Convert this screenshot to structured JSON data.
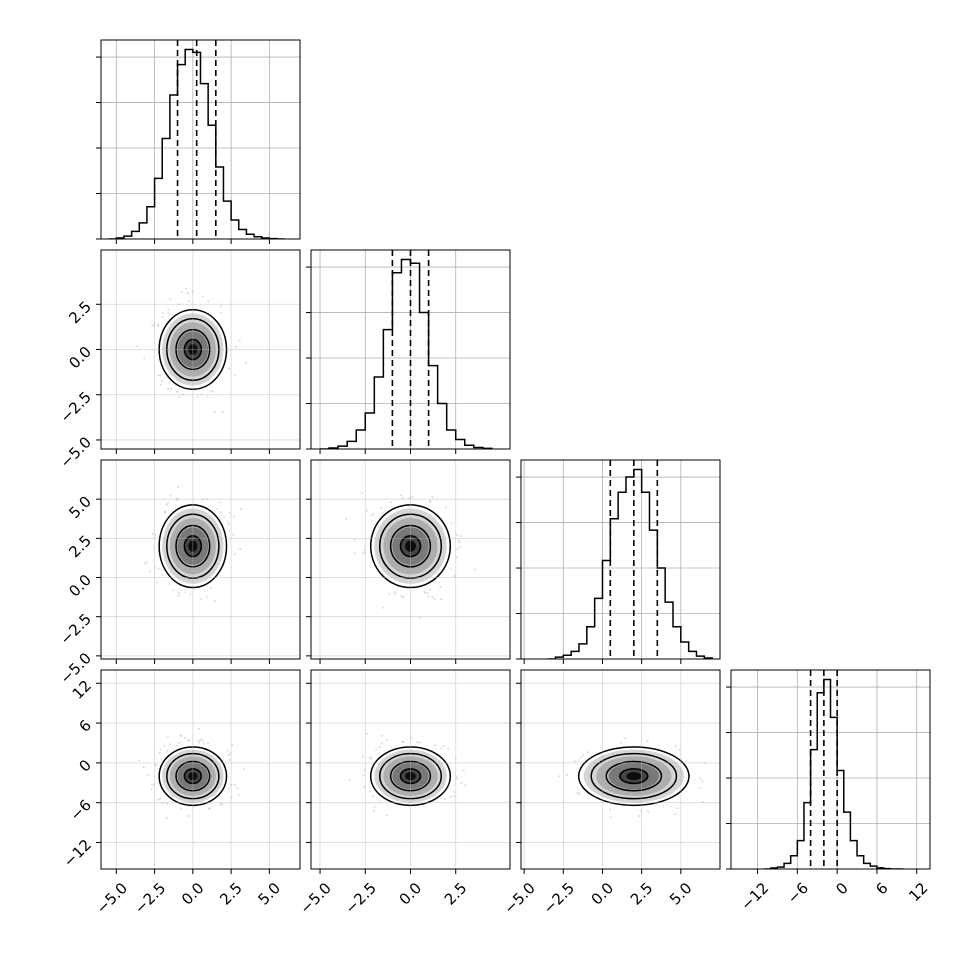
{
  "chart_data": {
    "type": "corner",
    "colors": {
      "line": "#000000",
      "grid": "#b0b0b0",
      "scatter": "#999999",
      "density_low": "#f2f2f2",
      "density_high": "#000000"
    },
    "grid": true,
    "parameters": [
      {
        "range": [
          -6,
          7
        ],
        "ticks": [
          -5,
          -2.5,
          0,
          2.5,
          5
        ],
        "tick_labels": [
          "−5.0",
          "−2.5",
          "0.0",
          "2.5",
          "5.0"
        ],
        "quantiles": [
          -1.0,
          0.25,
          1.5
        ],
        "hist": {
          "edges": [
            -5.5,
            -5.0,
            -4.5,
            -4.0,
            -3.5,
            -3.0,
            -2.5,
            -2.0,
            -1.5,
            -1.0,
            -0.5,
            0.0,
            0.5,
            1.0,
            1.5,
            2.0,
            2.5,
            3.0,
            3.5,
            4.0,
            4.5,
            5.0,
            5.5,
            6.0
          ],
          "counts": [
            0.0,
            0.005,
            0.015,
            0.04,
            0.085,
            0.17,
            0.32,
            0.53,
            0.76,
            0.92,
            1.0,
            0.985,
            0.82,
            0.6,
            0.38,
            0.2,
            0.1,
            0.05,
            0.025,
            0.012,
            0.005,
            0.002,
            0.0
          ]
        },
        "hist_ylim": [
          0,
          1.05
        ]
      },
      {
        "range": [
          -5.5,
          5.5
        ],
        "ticks": [
          -5,
          -2.5,
          0,
          2.5
        ],
        "tick_labels": [
          "−5.0",
          "−2.5",
          "0.0",
          "2.5"
        ],
        "quantiles": [
          -1.0,
          0.0,
          1.0
        ],
        "hist": {
          "edges": [
            -5.0,
            -4.5,
            -4.0,
            -3.5,
            -3.0,
            -2.5,
            -2.0,
            -1.5,
            -1.0,
            -0.5,
            0.0,
            0.5,
            1.0,
            1.5,
            2.0,
            2.5,
            3.0,
            3.5,
            4.0,
            4.5
          ],
          "counts": [
            0.0,
            0.005,
            0.015,
            0.04,
            0.1,
            0.19,
            0.38,
            0.63,
            0.93,
            1.0,
            0.98,
            0.72,
            0.44,
            0.24,
            0.1,
            0.05,
            0.02,
            0.008,
            0.003
          ]
        },
        "hist_ylim": [
          0,
          1.05
        ]
      },
      {
        "range": [
          -5.2,
          7.5
        ],
        "ticks": [
          -5,
          -2.5,
          0,
          2.5,
          5
        ],
        "tick_labels": [
          "−5.0",
          "−2.5",
          "0.0",
          "2.5",
          "5.0"
        ],
        "quantiles": [
          0.5,
          2.0,
          3.5
        ],
        "hist": {
          "edges": [
            -3.5,
            -3.0,
            -2.5,
            -2.0,
            -1.5,
            -1.0,
            -0.5,
            0.0,
            0.5,
            1.0,
            1.5,
            2.0,
            2.5,
            3.0,
            3.5,
            4.0,
            4.5,
            5.0,
            5.5,
            6.0,
            6.5,
            7.0
          ],
          "counts": [
            0.0,
            0.01,
            0.02,
            0.04,
            0.08,
            0.17,
            0.32,
            0.52,
            0.74,
            0.88,
            0.96,
            1.0,
            0.88,
            0.68,
            0.48,
            0.3,
            0.17,
            0.09,
            0.04,
            0.015,
            0.005
          ]
        },
        "hist_ylim": [
          0,
          1.05
        ]
      },
      {
        "range": [
          -16,
          14
        ],
        "ticks": [
          -12,
          -6,
          0,
          6,
          12
        ],
        "tick_labels": [
          "−12",
          "−6",
          "0",
          "6",
          "12"
        ],
        "quantiles": [
          -4.0,
          -2.0,
          0.0
        ],
        "hist": {
          "edges": [
            -11.0,
            -10.0,
            -9.0,
            -8.0,
            -7.0,
            -6.0,
            -5.0,
            -4.0,
            -3.0,
            -2.0,
            -1.0,
            0.0,
            1.0,
            2.0,
            3.0,
            4.0,
            5.0,
            6.0,
            7.0,
            8.0,
            9.0,
            10.0
          ],
          "counts": [
            0.0,
            0.005,
            0.01,
            0.03,
            0.07,
            0.15,
            0.35,
            0.63,
            0.93,
            1.0,
            0.8,
            0.52,
            0.3,
            0.15,
            0.07,
            0.03,
            0.015,
            0.006,
            0.002,
            0.0,
            0.0
          ]
        },
        "hist_ylim": [
          0,
          1.05
        ]
      }
    ],
    "joint": [
      {
        "row": 1,
        "col": 0,
        "mean": [
          0.0,
          0.0
        ],
        "sd": [
          1.0,
          1.0
        ]
      },
      {
        "row": 2,
        "col": 0,
        "mean": [
          0.0,
          2.0
        ],
        "sd": [
          1.0,
          1.2
        ]
      },
      {
        "row": 2,
        "col": 1,
        "mean": [
          0.0,
          2.0
        ],
        "sd": [
          1.0,
          1.2
        ]
      },
      {
        "row": 3,
        "col": 0,
        "mean": [
          0.0,
          -2.0
        ],
        "sd": [
          1.0,
          2.0
        ]
      },
      {
        "row": 3,
        "col": 1,
        "mean": [
          0.0,
          -2.0
        ],
        "sd": [
          1.0,
          2.0
        ]
      },
      {
        "row": 3,
        "col": 2,
        "mean": [
          2.0,
          -2.0
        ],
        "sd": [
          1.6,
          2.0
        ]
      }
    ]
  }
}
